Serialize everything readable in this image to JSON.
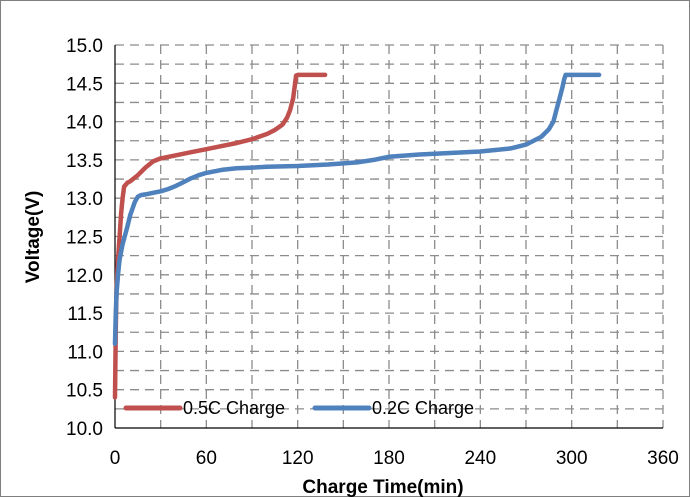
{
  "chart_data": {
    "type": "line",
    "title": "",
    "xlabel": "Charge Time(min)",
    "ylabel": "Voltage(V)",
    "xlim": [
      0,
      360
    ],
    "ylim": [
      10.0,
      15.0
    ],
    "x_ticks": [
      "0",
      "60",
      "120",
      "180",
      "240",
      "300",
      "360"
    ],
    "y_ticks": [
      "10.0",
      "10.5",
      "11.0",
      "11.5",
      "12.0",
      "12.5",
      "13.0",
      "13.5",
      "14.0",
      "14.5",
      "15.0"
    ],
    "grid": true,
    "legend_position": "bottom-left",
    "series": [
      {
        "name": "0.5C Charge",
        "color": "#c0504d",
        "x": [
          0,
          0.5,
          1,
          2,
          3,
          4,
          5,
          6,
          8,
          10,
          15,
          20,
          25,
          30,
          40,
          50,
          60,
          70,
          80,
          90,
          100,
          105,
          110,
          113,
          115,
          117,
          118,
          119,
          120,
          125,
          130,
          138
        ],
        "y": [
          10.4,
          11.3,
          11.8,
          12.2,
          12.5,
          12.8,
          13.0,
          13.15,
          13.2,
          13.22,
          13.3,
          13.4,
          13.48,
          13.52,
          13.56,
          13.6,
          13.64,
          13.68,
          13.72,
          13.77,
          13.84,
          13.89,
          13.96,
          14.05,
          14.15,
          14.3,
          14.45,
          14.6,
          14.61,
          14.61,
          14.61,
          14.61
        ]
      },
      {
        "name": "0.2C Charge",
        "color": "#4f81bd",
        "x": [
          0,
          0.5,
          1,
          2,
          3,
          5,
          8,
          10,
          13,
          15,
          17,
          20,
          25,
          30,
          35,
          40,
          45,
          50,
          55,
          60,
          70,
          80,
          90,
          100,
          120,
          140,
          160,
          170,
          180,
          200,
          220,
          240,
          260,
          270,
          280,
          285,
          288,
          290,
          292,
          294,
          295,
          296,
          300,
          310,
          318
        ],
        "y": [
          11.1,
          11.5,
          11.75,
          12.0,
          12.2,
          12.4,
          12.62,
          12.78,
          12.95,
          13.02,
          13.04,
          13.05,
          13.07,
          13.09,
          13.12,
          13.16,
          13.21,
          13.26,
          13.3,
          13.33,
          13.37,
          13.39,
          13.4,
          13.41,
          13.42,
          13.44,
          13.47,
          13.5,
          13.54,
          13.57,
          13.59,
          13.61,
          13.65,
          13.7,
          13.8,
          13.9,
          14.0,
          14.15,
          14.3,
          14.45,
          14.55,
          14.61,
          14.61,
          14.61,
          14.61
        ]
      }
    ]
  }
}
